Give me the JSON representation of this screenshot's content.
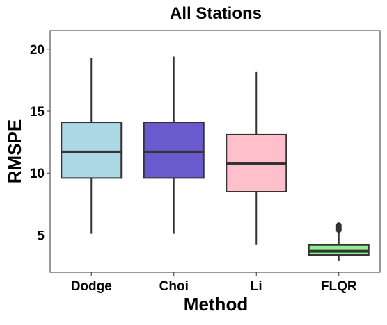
{
  "chart_data": {
    "type": "box",
    "title": "All Stations",
    "xlabel": "Method",
    "ylabel": "RMSPE",
    "ylim": [
      2.0,
      21.5
    ],
    "yticks": [
      5,
      10,
      15,
      20
    ],
    "grid": false,
    "categories": [
      "Dodge",
      "Choi",
      "Li",
      "FLQR"
    ],
    "boxes": [
      {
        "name": "Dodge",
        "whisker_low": 5.1,
        "q1": 9.6,
        "median": 11.7,
        "q3": 14.1,
        "whisker_high": 19.3,
        "outliers": [],
        "color": "#add8e6"
      },
      {
        "name": "Choi",
        "whisker_low": 5.1,
        "q1": 9.6,
        "median": 11.7,
        "q3": 14.1,
        "whisker_high": 19.4,
        "outliers": [],
        "color": "#6a5acd"
      },
      {
        "name": "Li",
        "whisker_low": 4.2,
        "q1": 8.5,
        "median": 10.8,
        "q3": 13.1,
        "whisker_high": 18.2,
        "outliers": [],
        "color": "#ffc0cb"
      },
      {
        "name": "FLQR",
        "whisker_low": 2.9,
        "q1": 3.4,
        "median": 3.7,
        "q3": 4.2,
        "whisker_high": 5.3,
        "outliers": [
          5.4,
          5.5,
          5.6,
          5.7,
          5.8
        ],
        "color": "#90ee90"
      }
    ]
  }
}
